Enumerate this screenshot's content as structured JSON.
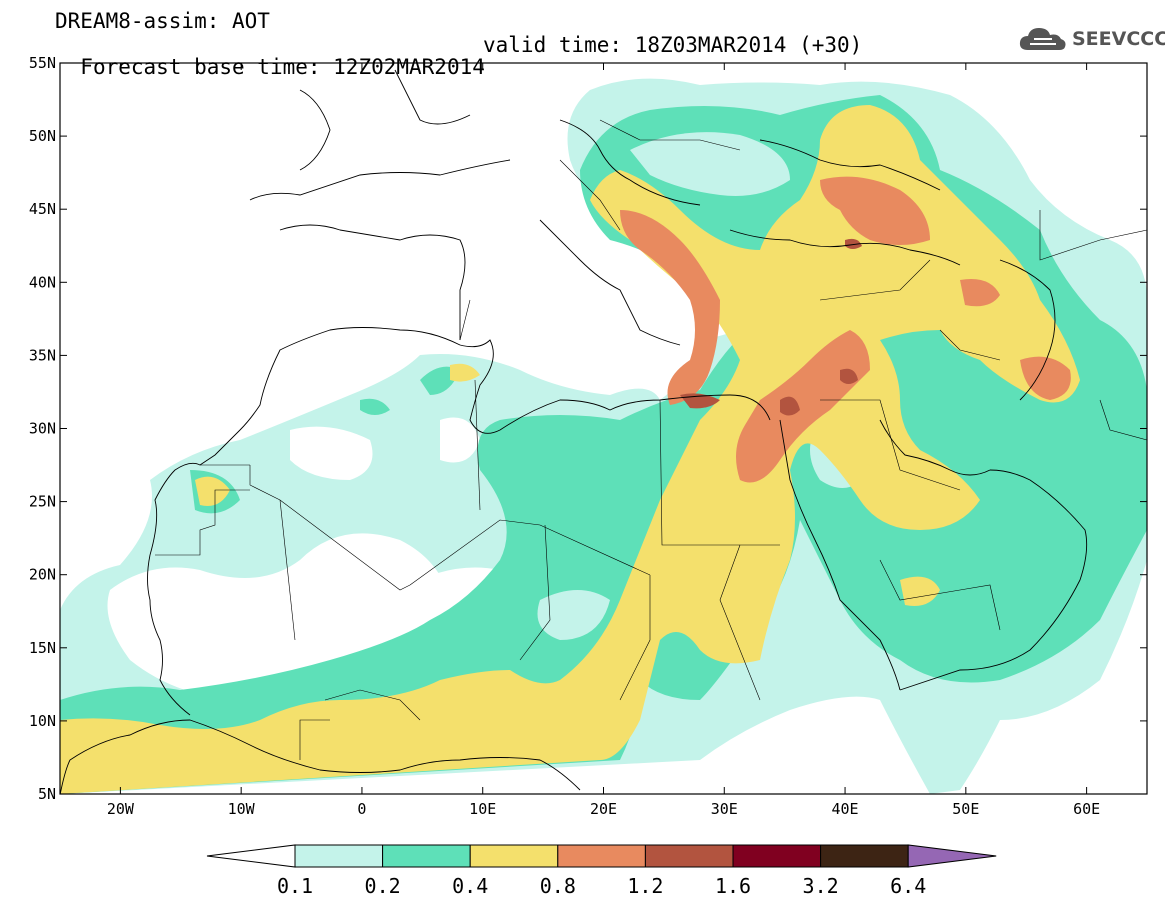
{
  "title": {
    "line1": "DREAM8-assim: AOT",
    "base": "Forecast base time: 12Z02MAR2014",
    "valid": "valid time: 18Z03MAR2014 (+30)"
  },
  "logo": {
    "text": "SEEVCCC",
    "icon": "cloud-icon"
  },
  "map": {
    "lon_range": [
      -25,
      65
    ],
    "lat_range": [
      5,
      55
    ],
    "lat_ticks": [
      {
        "value": 55,
        "label": "55N"
      },
      {
        "value": 50,
        "label": "50N"
      },
      {
        "value": 45,
        "label": "45N"
      },
      {
        "value": 40,
        "label": "40N"
      },
      {
        "value": 35,
        "label": "35N"
      },
      {
        "value": 30,
        "label": "30N"
      },
      {
        "value": 25,
        "label": "25N"
      },
      {
        "value": 20,
        "label": "20N"
      },
      {
        "value": 15,
        "label": "15N"
      },
      {
        "value": 10,
        "label": "10N"
      },
      {
        "value": 5,
        "label": "5N"
      }
    ],
    "lon_ticks": [
      {
        "value": -20,
        "label": "20W"
      },
      {
        "value": -10,
        "label": "10W"
      },
      {
        "value": 0,
        "label": "0"
      },
      {
        "value": 10,
        "label": "10E"
      },
      {
        "value": 20,
        "label": "20E"
      },
      {
        "value": 30,
        "label": "30E"
      },
      {
        "value": 40,
        "label": "40E"
      },
      {
        "value": 50,
        "label": "50E"
      },
      {
        "value": 60,
        "label": "60E"
      }
    ]
  },
  "colorbar": {
    "labels": [
      "0.1",
      "0.2",
      "0.4",
      "0.8",
      "1.2",
      "1.6",
      "3.2",
      "6.4"
    ],
    "colors": [
      "#c4f3ea",
      "#5ee0b8",
      "#f4e06c",
      "#e88a5f",
      "#b2543f",
      "#800020",
      "#3d2414"
    ],
    "under_color": "#ffffff",
    "over_color": "#9567b4"
  },
  "colors": {
    "c1": "#c4f3ea",
    "c2": "#5ee0b8",
    "c3": "#f4e06c",
    "c4": "#e88a5f",
    "c5": "#b2543f"
  }
}
